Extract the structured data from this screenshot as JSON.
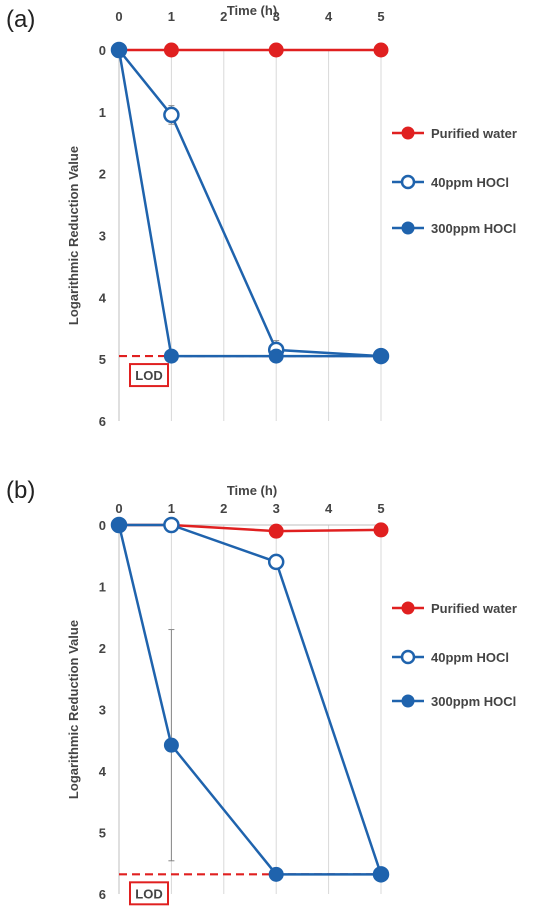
{
  "panels": [
    {
      "label": "(a)"
    },
    {
      "label": "(b)"
    }
  ],
  "chart_data": [
    {
      "type": "line",
      "panel_label": "(a)",
      "xlabel": "Time (h)",
      "ylabel": "Logarithmic Reduction Value",
      "x": [
        0,
        1,
        3,
        5
      ],
      "xticks": [
        "0",
        "1",
        "2",
        "3",
        "4",
        "5"
      ],
      "yticks": [
        "0",
        "1",
        "2",
        "3",
        "4",
        "5",
        "6"
      ],
      "xlim": [
        0,
        5
      ],
      "ylim": [
        0,
        6
      ],
      "y_inverted": true,
      "grid": "vertical",
      "legend": "right",
      "series": [
        {
          "name": "Purified water",
          "values": [
            0,
            0,
            0,
            0
          ],
          "color": "#e02020",
          "marker": "filled",
          "errors": [
            0,
            0,
            0.05,
            0.05
          ]
        },
        {
          "name": "40ppm HOCl",
          "values": [
            0,
            1.05,
            4.85,
            4.95
          ],
          "color": "#1f63ad",
          "marker": "open",
          "errors": [
            0,
            0.15,
            0.15,
            0
          ]
        },
        {
          "name": "300ppm HOCl",
          "values": [
            0,
            4.95,
            4.95,
            4.95
          ],
          "color": "#1f63ad",
          "marker": "filled",
          "errors": [
            0,
            0,
            0,
            0
          ]
        }
      ],
      "lod": {
        "label": "LOD",
        "value": 4.95,
        "color": "#e02020"
      }
    },
    {
      "type": "line",
      "panel_label": "(b)",
      "xlabel": "Time (h)",
      "ylabel": "Logarithmic Reduction Value",
      "x": [
        0,
        1,
        3,
        5
      ],
      "xticks": [
        "0",
        "1",
        "2",
        "3",
        "4",
        "5"
      ],
      "yticks": [
        "0",
        "1",
        "2",
        "3",
        "4",
        "5",
        "6"
      ],
      "xlim": [
        0,
        5
      ],
      "ylim": [
        0,
        6
      ],
      "y_inverted": true,
      "grid": "vertical",
      "legend": "right",
      "series": [
        {
          "name": "Purified water",
          "values": [
            0,
            0,
            0.1,
            0.08
          ],
          "color": "#e02020",
          "marker": "filled",
          "errors": [
            0,
            0,
            0.08,
            0
          ]
        },
        {
          "name": "40ppm HOCl",
          "values": [
            0,
            0,
            0.6,
            5.68
          ],
          "color": "#1f63ad",
          "marker": "open",
          "errors": [
            0,
            0,
            0,
            0
          ]
        },
        {
          "name": "300ppm HOCl",
          "values": [
            0,
            3.58,
            5.68,
            5.68
          ],
          "color": "#1f63ad",
          "marker": "filled",
          "errors": [
            0,
            1.88,
            0,
            0
          ]
        }
      ],
      "lod": {
        "label": "LOD",
        "value": 5.68,
        "color": "#e02020"
      }
    }
  ]
}
